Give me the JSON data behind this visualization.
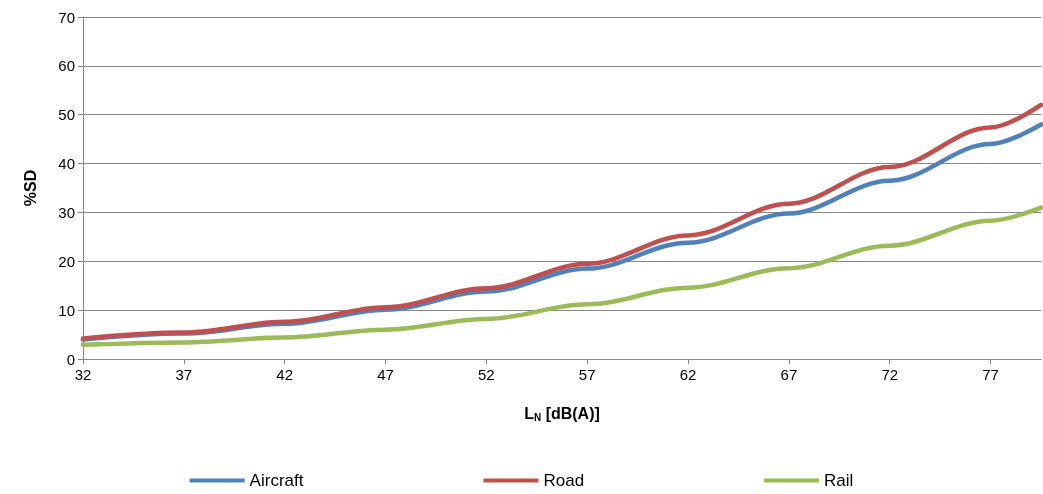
{
  "chart_data": {
    "type": "line",
    "xlabel": "L$_{N}$ [dB(A)]",
    "ylabel": "%SD",
    "x": [
      32,
      37,
      42,
      47,
      52,
      57,
      62,
      67,
      72,
      77,
      79.5
    ],
    "series": [
      {
        "name": "Aircraft",
        "color": "#4f81bd",
        "values": [
          4.0,
          5.2,
          7.2,
          10.1,
          13.8,
          18.5,
          23.8,
          29.8,
          36.5,
          44,
          48
        ]
      },
      {
        "name": "Road",
        "color": "#c0504d",
        "values": [
          4.2,
          5.4,
          7.6,
          10.6,
          14.5,
          19.5,
          25.3,
          31.8,
          39.3,
          47.4,
          52
        ]
      },
      {
        "name": "Rail",
        "color": "#9bbb59",
        "values": [
          2.9,
          3.4,
          4.4,
          6.0,
          8.2,
          11.2,
          14.6,
          18.6,
          23.2,
          28.3,
          31
        ]
      }
    ],
    "xlim": [
      32,
      79.5
    ],
    "xticks": [
      32,
      37,
      42,
      47,
      52,
      57,
      62,
      67,
      72,
      77
    ],
    "ylim": [
      0,
      70
    ],
    "yticks": [
      0,
      10,
      20,
      30,
      40,
      50,
      60,
      70
    ],
    "grid": "y",
    "legend": "bottom",
    "marker": "none",
    "line_style": "solid"
  }
}
